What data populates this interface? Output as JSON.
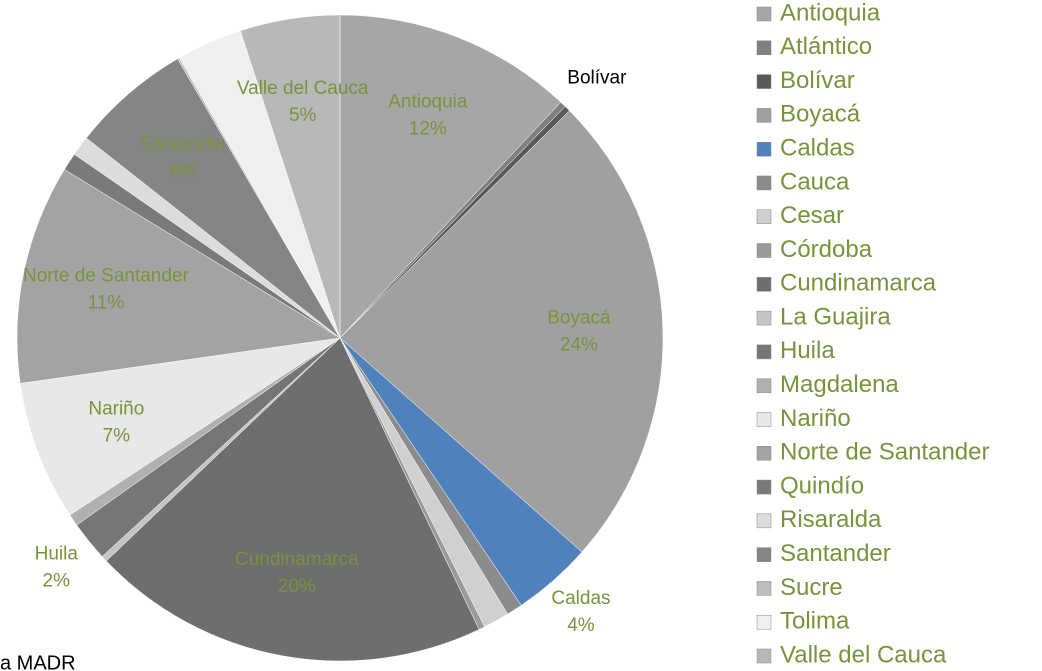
{
  "chart_data": {
    "type": "pie",
    "categories": [
      "Antioquia",
      "Atlántico",
      "Bolívar",
      "Boyacá",
      "Caldas",
      "Cauca",
      "Cesar",
      "Córdoba",
      "Cundinamarca",
      "La Guajira",
      "Huila",
      "Magdalena",
      "Nariño",
      "Norte de Santander",
      "Quindío",
      "Risaralda",
      "Santander",
      "Sucre",
      "Tolima",
      "Valle del Cauca"
    ],
    "values": [
      12,
      0.3,
      0.3,
      24,
      4,
      0.8,
      1.3,
      0.3,
      20,
      0.3,
      2,
      0.6,
      7,
      11,
      0.9,
      1.0,
      6,
      0.1,
      3.3,
      5
    ],
    "value_labels": [
      "12%",
      null,
      null,
      "24%",
      "4%",
      null,
      null,
      null,
      "20%",
      null,
      "2%",
      null,
      "7%",
      "11%",
      null,
      null,
      "6%",
      null,
      null,
      "5%"
    ],
    "colors": [
      "#a6a6a6",
      "#7f7f7f",
      "#595959",
      "#a0a0a0",
      "#4f81bd",
      "#8c8c8c",
      "#d0d0d0",
      "#9a9a9a",
      "#6e6e6e",
      "#c4c4c4",
      "#767676",
      "#b0b0b0",
      "#e8e8e8",
      "#a3a3a3",
      "#7a7a7a",
      "#dcdcdc",
      "#858585",
      "#bdbdbd",
      "#efefef",
      "#b8b8b8"
    ],
    "source": "a MADR"
  }
}
